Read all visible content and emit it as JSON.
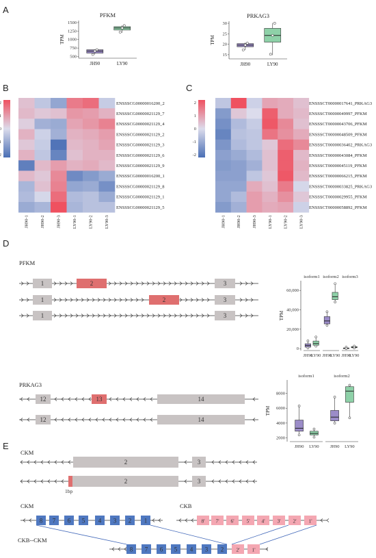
{
  "panels": {
    "A": "A",
    "B": "B",
    "C": "C",
    "D": "D",
    "E": "E"
  },
  "colors": {
    "jh90": "#9b8cc8",
    "ly90": "#8ed1a8",
    "hm_low": "#4a6fb5",
    "hm_mid": "#dcdcec",
    "hm_high": "#ef5160",
    "exon": "#c8c3c3",
    "exon_hl": "#df6f6f",
    "ckm_box": "#4f78c0",
    "ckb_box": "#f4a7b2",
    "link": "#3f66b8"
  },
  "panelA": [
    {
      "title": "PFKM",
      "ylabel": "TPM",
      "yticks": [
        "1500",
        "1250",
        "1000",
        "750",
        "500"
      ],
      "ylim": [
        450,
        1560
      ],
      "groups": [
        {
          "label": "JH90",
          "q1": 600,
          "med": 660,
          "q3": 700,
          "min": 560,
          "max": 710,
          "pts": [
            560,
            660,
            700
          ]
        },
        {
          "label": "LY90",
          "q1": 1280,
          "med": 1340,
          "q3": 1380,
          "min": 1200,
          "max": 1420,
          "pts": [
            1220,
            1340,
            1410
          ]
        }
      ]
    },
    {
      "title": "PRKAG3",
      "ylabel": "TPM",
      "yticks": [
        "30",
        "25",
        "20",
        "15"
      ],
      "ylim": [
        13,
        31
      ],
      "groups": [
        {
          "label": "JH90",
          "q1": 18.8,
          "med": 19.6,
          "q3": 20.3,
          "min": 17.2,
          "max": 20.8,
          "pts": [
            17.3,
            19.6,
            20.5
          ]
        },
        {
          "label": "LY90",
          "q1": 21.0,
          "med": 24.2,
          "q3": 27.6,
          "min": 14.8,
          "max": 30.2,
          "pts": [
            15.2,
            24.2,
            30.0
          ]
        }
      ]
    }
  ],
  "legend": {
    "ticks": [
      "2",
      "1",
      "0",
      "-1",
      "-2"
    ]
  },
  "heatmapB": {
    "columns": [
      "JH90-1",
      "JH90-2",
      "JH90-3",
      "LY90-1",
      "LY90-2",
      "LY90-3"
    ],
    "rows": [
      "ENSSSCG00000016200_2",
      "ENSSSCG00000021129_7",
      "ENSSSCG00000021129_4",
      "ENSSSCG00000021129_2",
      "ENSSSCG00000021129_3",
      "ENSSSCG00000021129_6",
      "ENSSSCG00000021129_9",
      "ENSSSCG00000016200_1",
      "ENSSSCG00000021129_8",
      "ENSSSCG00000021129_1",
      "ENSSSCG00000021129_5"
    ],
    "values": [
      [
        0.4,
        -0.4,
        -1.0,
        1.4,
        1.6,
        -0.3
      ],
      [
        0.5,
        0.3,
        0.4,
        1.0,
        0.9,
        0.6
      ],
      [
        0.2,
        -0.8,
        -0.9,
        0.8,
        1.0,
        1.3
      ],
      [
        0.6,
        -0.2,
        -0.8,
        0.6,
        0.7,
        0.9
      ],
      [
        0.3,
        -0.3,
        -1.9,
        0.5,
        0.6,
        0.8
      ],
      [
        0.6,
        -0.4,
        -1.6,
        0.4,
        0.6,
        0.6
      ],
      [
        -1.7,
        0.5,
        0.9,
        0.6,
        0.7,
        0.5
      ],
      [
        0.5,
        0.3,
        1.2,
        -1.5,
        -1.2,
        -0.9
      ],
      [
        -0.7,
        0.4,
        1.3,
        -1.0,
        -0.9,
        -1.4
      ],
      [
        -0.6,
        -0.1,
        1.6,
        -0.6,
        -0.5,
        -0.9
      ],
      [
        -0.9,
        -0.7,
        2.0,
        -0.7,
        -0.5,
        -0.5
      ]
    ]
  },
  "heatmapC": {
    "columns": [
      "JH90-1",
      "JH90-2",
      "JH90-3",
      "LY90-1",
      "LY90-2",
      "LY90-3"
    ],
    "rows": [
      "ENSSSCT00000017641_PRKAG3",
      "ENSSSCT00000049997_PFKM",
      "ENSSSCT00000043706_PFKM",
      "ENSSSCT00000048509_PFKM",
      "ENSSSCT00000036402_PRKAG3",
      "ENSSSCT00000043084_PFKM",
      "ENSSSCT00000045119_PFKM",
      "ENSSSCT00000066215_PFKM",
      "ENSSSCT00000033825_PRKAG3",
      "ENSSSCT00000029955_PFKM",
      "ENSSSCT00000058892_PFKM"
    ],
    "values": [
      [
        -0.4,
        2.0,
        -0.2,
        0.8,
        0.7,
        0.4
      ],
      [
        -1.2,
        0.3,
        0.0,
        1.8,
        0.7,
        0.5
      ],
      [
        -1.4,
        -0.6,
        -0.3,
        1.9,
        1.2,
        0.4
      ],
      [
        -1.6,
        -0.5,
        -0.4,
        1.5,
        1.1,
        0.7
      ],
      [
        -1.3,
        -0.6,
        -0.4,
        0.3,
        1.6,
        1.2
      ],
      [
        -1.1,
        -0.9,
        -0.6,
        0.4,
        1.8,
        0.5
      ],
      [
        -1.2,
        -1.1,
        -0.8,
        0.4,
        1.8,
        0.6
      ],
      [
        -1.1,
        -1.1,
        -0.4,
        0.3,
        1.9,
        0.5
      ],
      [
        -1.0,
        -1.0,
        0.7,
        0.4,
        1.4,
        -0.1
      ],
      [
        -1.0,
        -0.6,
        0.9,
        0.6,
        1.1,
        0.3
      ],
      [
        -1.2,
        -0.8,
        0.9,
        0.7,
        0.8,
        -0.2
      ]
    ]
  },
  "genes": {
    "pfkm": {
      "name": "PFKM",
      "exons": [
        "1",
        "2",
        "3"
      ]
    },
    "prkag3": {
      "name": "PRKAG3",
      "exons": [
        "12",
        "13",
        "14"
      ]
    },
    "ckm": {
      "name": "CKM",
      "exons": [
        "2",
        "3"
      ],
      "note": "1bp"
    }
  },
  "isoformsPFKM": {
    "ylabel": "TPM",
    "yticks": [
      "60,000",
      "40,000",
      "20,000",
      "0"
    ],
    "ylim": [
      -2000,
      70000
    ],
    "groupLabels": [
      "JH90",
      "LY90"
    ],
    "isoforms": [
      {
        "name": "isoform1",
        "jh": {
          "q1": 1500,
          "med": 3200,
          "q3": 5000,
          "min": 700,
          "max": 8000
        },
        "ly": {
          "q1": 3500,
          "med": 5200,
          "q3": 7800,
          "min": 2500,
          "max": 12000
        }
      },
      {
        "name": "isoform2",
        "jh": {
          "q1": 25500,
          "med": 28500,
          "q3": 33000,
          "min": 24000,
          "max": 38000
        },
        "ly": {
          "q1": 50500,
          "med": 53500,
          "q3": 58000,
          "min": 48000,
          "max": 67000
        }
      },
      {
        "name": "isoform3",
        "jh": {
          "q1": 100,
          "med": 400,
          "q3": 700,
          "min": 0,
          "max": 1500
        },
        "ly": {
          "q1": 900,
          "med": 1400,
          "q3": 2000,
          "min": 600,
          "max": 2600
        }
      }
    ]
  },
  "isoformsPRKAG3": {
    "ylabel": "TPM",
    "yticks": [
      "8000",
      "6000",
      "4000",
      "2000"
    ],
    "ylim": [
      1500,
      9800
    ],
    "groupLabels": [
      "JH90",
      "LY90"
    ],
    "isoforms": [
      {
        "name": "isoform1",
        "jh": {
          "q1": 2900,
          "med": 3300,
          "q3": 4400,
          "min": 2400,
          "max": 6300
        },
        "ly": {
          "q1": 2400,
          "med": 2600,
          "q3": 2900,
          "min": 2100,
          "max": 3200
        }
      },
      {
        "name": "isoform2",
        "jh": {
          "q1": 4300,
          "med": 4800,
          "q3": 5700,
          "min": 4000,
          "max": 7500
        },
        "ly": {
          "q1": 6800,
          "med": 8300,
          "q3": 8900,
          "min": 4700,
          "max": 9100
        }
      }
    ]
  },
  "fusion": {
    "ckm_label": "CKM",
    "ckb_label": "CKB",
    "fusion_label": "CKB--CKM",
    "ckm_boxes": [
      "8",
      "7",
      "6",
      "5",
      "4",
      "3",
      "2",
      "1"
    ],
    "ckb_boxes": [
      "8'",
      "7'",
      "6'",
      "5'",
      "4'",
      "3'",
      "2'",
      "1'"
    ],
    "fusion_ckm": [
      "8",
      "7",
      "6",
      "5",
      "4",
      "3",
      "2"
    ],
    "fusion_ckb": [
      "2'",
      "1'"
    ]
  }
}
